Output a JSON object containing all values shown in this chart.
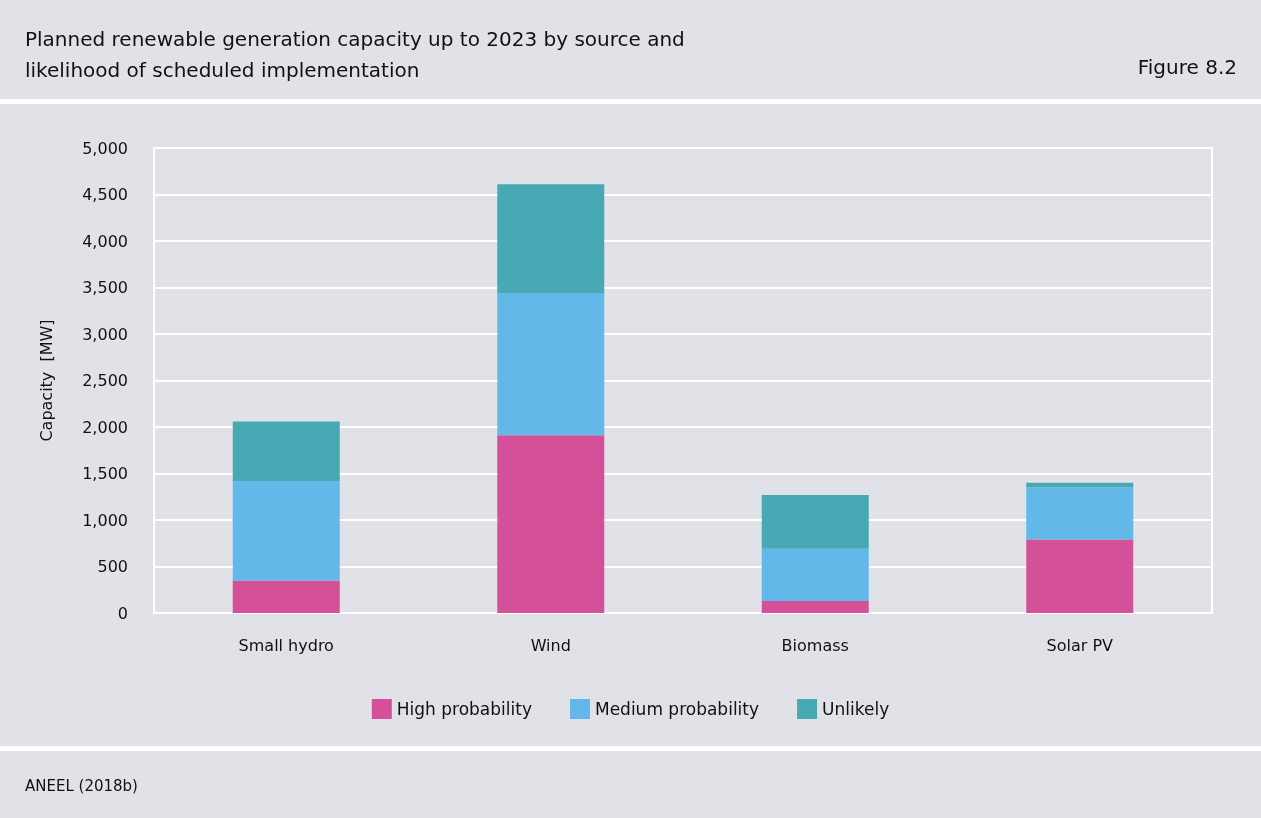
{
  "chart_data": {
    "type": "bar",
    "title": "Planned renewable generation capacity up to 2023 by source and likelihood of scheduled implementation",
    "ylabel": "Capacity  [MW]",
    "categories": [
      "Small hydro",
      "Wind",
      "Biomass",
      "Solar PV"
    ],
    "stacked": true,
    "series": [
      {
        "name": "High probability",
        "color": "#d4519a",
        "values": [
          350,
          1910,
          130,
          790
        ]
      },
      {
        "name": "Medium probability",
        "color": "#62b8e8",
        "values": [
          1070,
          1530,
          560,
          560
        ]
      },
      {
        "name": "Unlikely",
        "color": "#46a9b3",
        "values": [
          640,
          1170,
          580,
          50
        ]
      }
    ],
    "ylim": [
      0,
      5000
    ],
    "yticks": [
      0,
      500,
      {
        "value": 1000,
        "label": "1,000"
      },
      {
        "value": 1500,
        "label": "1,500"
      },
      {
        "value": 2000,
        "label": "2,000"
      },
      {
        "value": 2500,
        "label": "2,500"
      },
      {
        "value": 3000,
        "label": "3,000"
      },
      {
        "value": 3500,
        "label": "3,500"
      },
      {
        "value": 4000,
        "label": "4,000"
      },
      {
        "value": 4500,
        "label": "4,500"
      },
      {
        "value": 5000,
        "label": "5,000"
      }
    ],
    "grid": "y",
    "legend": "bottom",
    "annotations": [
      "Figure 8.2",
      "ANEEL (2018b)"
    ]
  }
}
